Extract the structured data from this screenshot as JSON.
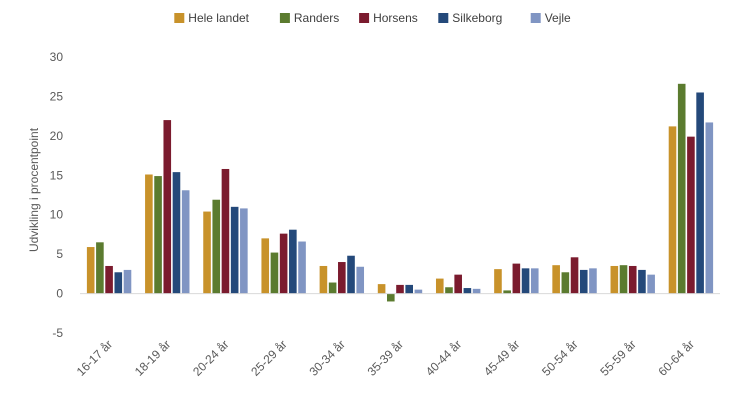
{
  "chart_data": {
    "type": "bar",
    "title": "",
    "xlabel": "",
    "ylabel": "Udvikling i procentpoint",
    "ylim": [
      -5,
      30
    ],
    "yticks": [
      -5,
      0,
      5,
      10,
      15,
      20,
      25,
      30
    ],
    "grid": false,
    "legend_position": "top",
    "categories": [
      "16-17 år",
      "18-19 år",
      "20-24 år",
      "25-29 år",
      "30-34 år",
      "35-39 år",
      "40-44 år",
      "45-49 år",
      "50-54 år",
      "55-59 år",
      "60-64 år"
    ],
    "series": [
      {
        "name": "Hele landet",
        "color": "#C8922A",
        "values": [
          5.9,
          15.1,
          10.4,
          7.0,
          3.5,
          1.2,
          1.9,
          3.1,
          3.6,
          3.5,
          21.2
        ]
      },
      {
        "name": "Randers",
        "color": "#5B7B2F",
        "values": [
          6.5,
          14.9,
          11.9,
          5.2,
          1.4,
          -1.0,
          0.8,
          0.4,
          2.7,
          3.6,
          26.6
        ]
      },
      {
        "name": "Horsens",
        "color": "#7B1B2E",
        "values": [
          3.5,
          22.0,
          15.8,
          7.6,
          4.0,
          1.1,
          2.4,
          3.8,
          4.6,
          3.5,
          19.9
        ]
      },
      {
        "name": "Silkeborg",
        "color": "#24497A",
        "values": [
          2.7,
          15.4,
          11.0,
          8.1,
          4.8,
          1.1,
          0.7,
          3.2,
          3.0,
          3.0,
          25.5
        ]
      },
      {
        "name": "Vejle",
        "color": "#8095C3",
        "values": [
          3.0,
          13.1,
          10.8,
          6.6,
          3.4,
          0.5,
          0.6,
          3.2,
          3.2,
          2.4,
          21.7
        ]
      }
    ]
  }
}
